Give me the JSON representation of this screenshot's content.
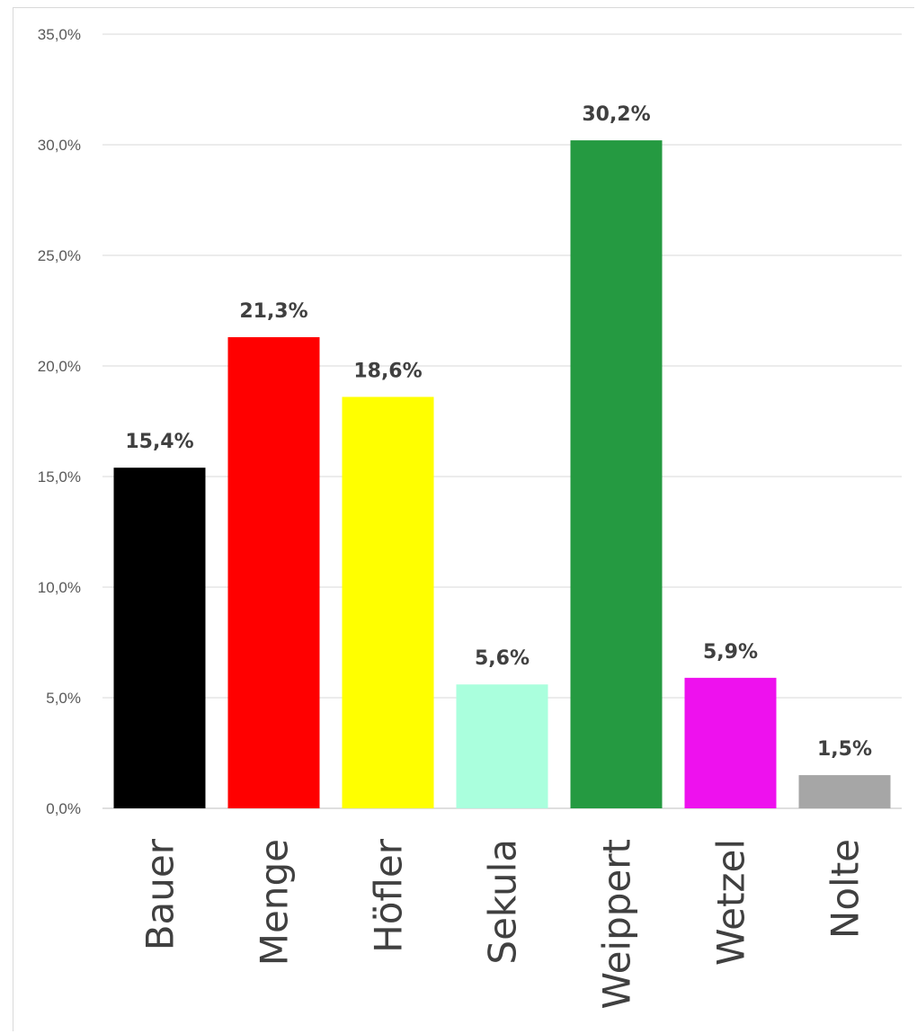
{
  "chart_data": {
    "type": "bar",
    "categories": [
      "Bauer",
      "Menge",
      "Höfler",
      "Sekula",
      "Weippert",
      "Wetzel",
      "Nolte"
    ],
    "values": [
      15.4,
      21.3,
      18.6,
      5.6,
      30.2,
      5.9,
      1.5
    ],
    "data_labels": [
      "15,4%",
      "21,3%",
      "18,6%",
      "5,6%",
      "30,2%",
      "5,9%",
      "1,5%"
    ],
    "colors": [
      "#000000",
      "#ff0000",
      "#ffff00",
      "#aaffdd",
      "#259a41",
      "#ee11ee",
      "#a6a6a6"
    ],
    "y_ticks": [
      "0,0%",
      "5,0%",
      "10,0%",
      "15,0%",
      "20,0%",
      "25,0%",
      "30,0%",
      "35,0%"
    ],
    "ylim": [
      0,
      35
    ],
    "title": "",
    "xlabel": "",
    "ylabel": "",
    "grid": true,
    "legend": "none"
  }
}
